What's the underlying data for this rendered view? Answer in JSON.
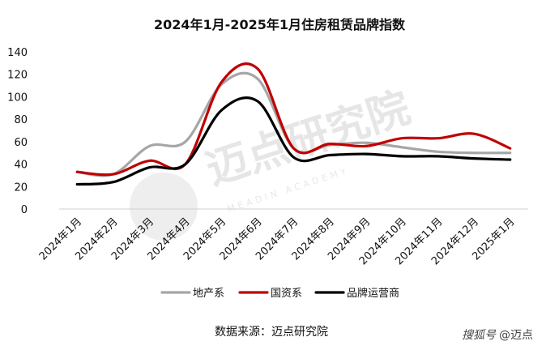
{
  "chart_data": {
    "type": "line",
    "title": "2024年1月-2025年1月住房租赁品牌指数",
    "categories": [
      "2024年1月",
      "2024年2月",
      "2024年3月",
      "2024年4月",
      "2024年5月",
      "2024年6月",
      "2024年7月",
      "2024年8月",
      "2024年9月",
      "2024年10月",
      "2024年11月",
      "2024年12月",
      "2025年1月"
    ],
    "ylim": [
      0,
      140
    ],
    "yticks": [
      0,
      20,
      40,
      60,
      80,
      100,
      120,
      140
    ],
    "grid": false,
    "legend_position": "bottom",
    "series": [
      {
        "name": "地产系",
        "color": "#a6a6a6",
        "values": [
          33,
          31,
          56,
          60,
          111,
          116,
          54,
          57,
          59,
          55,
          51,
          50,
          50
        ]
      },
      {
        "name": "国资系",
        "color": "#c00000",
        "values": [
          33,
          31,
          43,
          40,
          113,
          125,
          54,
          58,
          56,
          63,
          63,
          67,
          54
        ]
      },
      {
        "name": "品牌运营商",
        "color": "#000000",
        "values": [
          22,
          24,
          37,
          40,
          88,
          96,
          46,
          48,
          49,
          47,
          47,
          45,
          44
        ]
      }
    ]
  },
  "source": "数据来源：迈点研究院",
  "watermark": {
    "cn": "迈点研究院",
    "en": "MEADIN ACADEMY"
  },
  "brand": {
    "platform": "搜狐号",
    "account": "@迈点"
  }
}
